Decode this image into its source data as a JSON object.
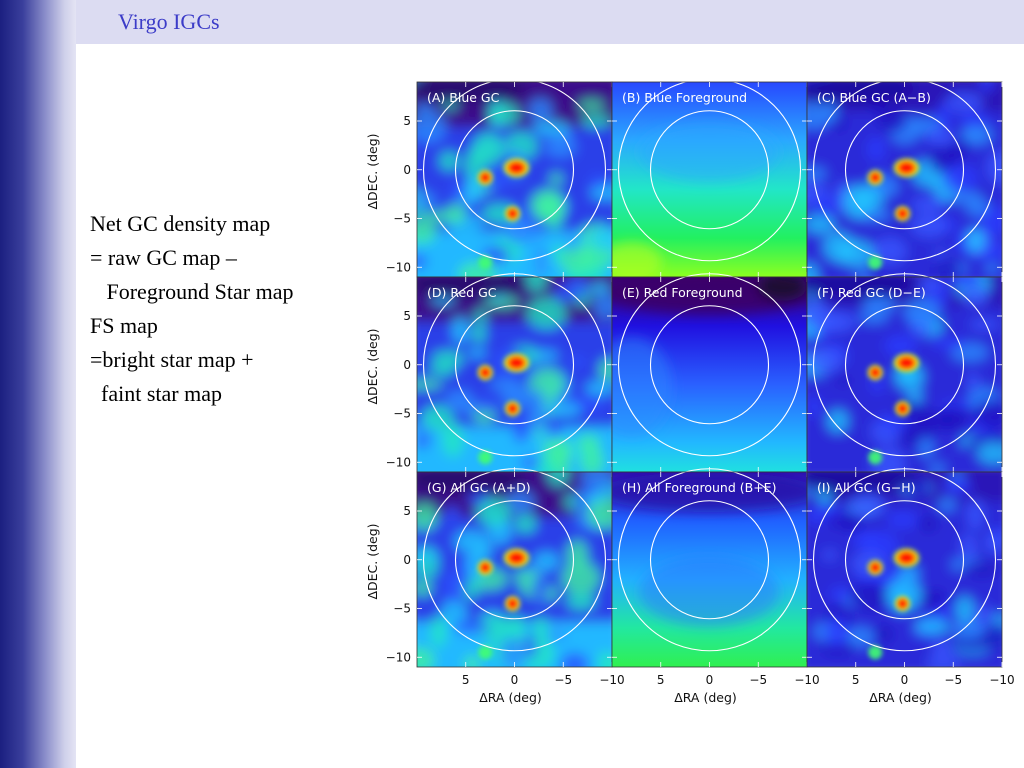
{
  "slide": {
    "title": "Virgo IGCs",
    "lines": [
      "Net GC density map",
      "= raw GC map –",
      "   Foreground Star map",
      "",
      "FS map",
      "=bright star map +",
      "  faint star map"
    ]
  },
  "figure": {
    "panels": [
      {
        "label": "(A) Blue GC",
        "kind": "gc"
      },
      {
        "label": "(B) Blue Foreground",
        "kind": "fg-green"
      },
      {
        "label": "(C) Blue GC (A−B)",
        "kind": "gc-net"
      },
      {
        "label": "(D) Red GC",
        "kind": "gc"
      },
      {
        "label": "(E) Red Foreground",
        "kind": "fg-blue"
      },
      {
        "label": "(F) Red GC (D−E)",
        "kind": "gc-net"
      },
      {
        "label": "(G) All GC (A+D)",
        "kind": "gc"
      },
      {
        "label": "(H) All Foreground (B+E)",
        "kind": "fg-mid"
      },
      {
        "label": "(I) All GC (G−H)",
        "kind": "gc-net"
      }
    ],
    "y_axis_label": "ΔDEC. (deg)",
    "x_axis_label": "ΔRA (deg)",
    "y_ticks": [
      "5",
      "0",
      "−5",
      "−10"
    ],
    "x_ticks": [
      "5",
      "0",
      "−5",
      "−10"
    ],
    "y_tick_values": [
      5,
      0,
      -5,
      -10
    ],
    "x_tick_values": [
      5,
      0,
      -5,
      -10
    ],
    "x_range": [
      10,
      -10
    ],
    "y_range": [
      -11,
      9
    ],
    "colormap": "rainbow"
  }
}
